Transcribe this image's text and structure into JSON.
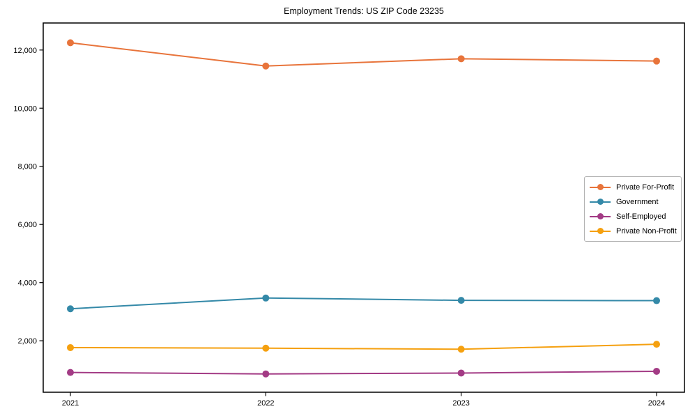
{
  "title": "Employment Trends: US ZIP Code 23235",
  "chart_data": {
    "type": "line",
    "title": "Employment Trends: US ZIP Code 23235",
    "xlabel": "",
    "ylabel": "",
    "grid": false,
    "legend_position": "right-middle",
    "categories": [
      "2021",
      "2022",
      "2023",
      "2024"
    ],
    "series": [
      {
        "name": "Private For-Profit",
        "color": "#e8743b",
        "values": [
          12250,
          11450,
          11700,
          11620
        ]
      },
      {
        "name": "Government",
        "color": "#3489a8",
        "values": [
          3100,
          3470,
          3390,
          3380
        ]
      },
      {
        "name": "Self-Employed",
        "color": "#a33b85",
        "values": [
          910,
          860,
          890,
          950
        ]
      },
      {
        "name": "Private Non-Profit",
        "color": "#f5a00f",
        "values": [
          1765,
          1745,
          1710,
          1880
        ]
      }
    ],
    "yticks": [
      2000,
      4000,
      6000,
      8000,
      10000,
      12000
    ],
    "ytick_labels": [
      "2,000",
      "4,000",
      "6,000",
      "8,000",
      "10,000",
      "12,000"
    ],
    "ylim": [
      230,
      12930
    ]
  }
}
